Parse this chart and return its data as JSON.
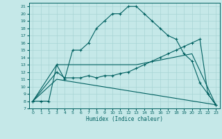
{
  "xlabel": "Humidex (Indice chaleur)",
  "bg_color": "#c5e8e8",
  "line_color": "#006060",
  "grid_color": "#a8d4d4",
  "xlim": [
    -0.5,
    23.5
  ],
  "ylim": [
    7,
    21.5
  ],
  "yticks": [
    7,
    8,
    9,
    10,
    11,
    12,
    13,
    14,
    15,
    16,
    17,
    18,
    19,
    20,
    21
  ],
  "xticks": [
    0,
    1,
    2,
    3,
    4,
    5,
    6,
    7,
    8,
    9,
    10,
    11,
    12,
    13,
    14,
    15,
    16,
    17,
    18,
    19,
    20,
    21,
    22,
    23
  ],
  "line1_x": [
    0,
    1,
    2,
    3,
    4,
    5,
    6,
    7,
    8,
    9,
    10,
    11,
    12,
    13,
    14,
    15,
    16,
    17,
    18,
    19,
    20,
    21,
    22,
    23
  ],
  "line1_y": [
    8,
    8,
    8,
    13,
    11,
    15,
    15,
    16,
    18,
    19,
    20,
    20,
    21,
    21,
    20,
    19,
    18,
    17,
    16.5,
    14.5,
    13.5,
    10.5,
    9,
    7.5
  ],
  "line2_x": [
    0,
    3,
    4,
    5,
    6,
    7,
    8,
    9,
    10,
    11,
    12,
    13,
    14,
    15,
    16,
    17,
    18,
    19,
    20,
    21,
    22,
    23
  ],
  "line2_y": [
    8,
    12,
    11.2,
    11.2,
    11.2,
    11.5,
    11.2,
    11.5,
    11.5,
    11.8,
    12,
    12.5,
    13,
    13.5,
    14,
    14.5,
    15,
    15.5,
    16,
    16.5,
    9,
    7.5
  ],
  "line3_x": [
    0,
    3,
    23
  ],
  "line3_y": [
    8,
    11,
    7.5
  ],
  "line4_x": [
    0,
    3,
    13,
    20,
    23
  ],
  "line4_y": [
    8,
    13,
    13,
    14.5,
    7.5
  ]
}
